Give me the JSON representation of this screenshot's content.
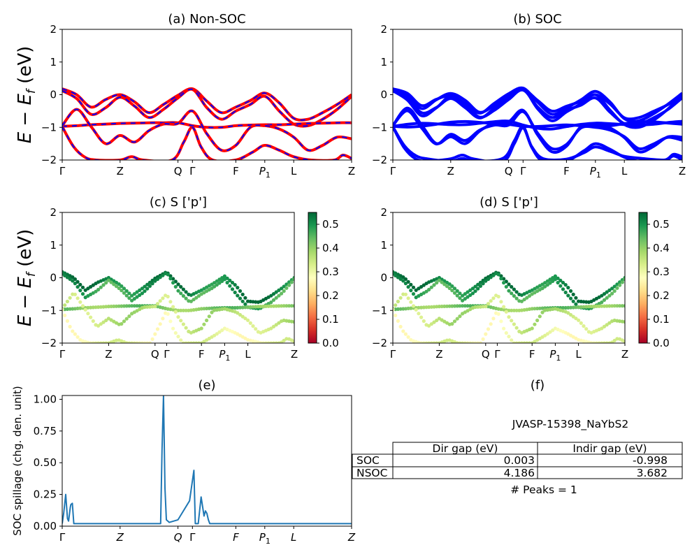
{
  "chart_data": [
    {
      "id": "a",
      "type": "line",
      "title": "(a) Non-SOC",
      "ylabel": "E - E_f (eV)",
      "ylim": [
        -2,
        2
      ],
      "yticks": [
        "2",
        "1",
        "0",
        "−1",
        "−2"
      ],
      "kpath_labels": [
        "Γ",
        "Z",
        "Q",
        "Γ",
        "F",
        "P₁",
        "L",
        "Z"
      ],
      "kpath_positions": [
        0.0,
        0.2,
        0.4,
        0.45,
        0.6,
        0.7,
        0.8,
        1.0
      ],
      "series": [
        {
          "color": "#ff0000",
          "style": "solid",
          "values": [
            [
              [
                0,
                0.18
              ],
              [
                0.05,
                0.0
              ],
              [
                0.1,
                -0.38
              ],
              [
                0.15,
                -0.15
              ],
              [
                0.2,
                0.0
              ],
              [
                0.25,
                -0.22
              ],
              [
                0.3,
                -0.55
              ],
              [
                0.35,
                -0.3
              ],
              [
                0.4,
                -0.02
              ],
              [
                0.45,
                0.18
              ],
              [
                0.5,
                -0.2
              ],
              [
                0.55,
                -0.55
              ],
              [
                0.6,
                -0.38
              ],
              [
                0.65,
                -0.18
              ],
              [
                0.7,
                0.05
              ],
              [
                0.75,
                -0.25
              ],
              [
                0.8,
                -0.72
              ],
              [
                0.85,
                -0.75
              ],
              [
                0.9,
                -0.55
              ],
              [
                0.95,
                -0.3
              ],
              [
                1.0,
                0.0
              ]
            ],
            [
              [
                0,
                0.12
              ],
              [
                0.05,
                -0.12
              ],
              [
                0.1,
                -0.6
              ],
              [
                0.15,
                -0.4
              ],
              [
                0.2,
                -0.08
              ],
              [
                0.25,
                -0.35
              ],
              [
                0.3,
                -0.7
              ],
              [
                0.35,
                -0.45
              ],
              [
                0.4,
                -0.1
              ],
              [
                0.45,
                0.16
              ],
              [
                0.5,
                -0.4
              ],
              [
                0.55,
                -0.75
              ],
              [
                0.6,
                -0.5
              ],
              [
                0.65,
                -0.3
              ],
              [
                0.7,
                -0.05
              ],
              [
                0.75,
                -0.5
              ],
              [
                0.8,
                -0.9
              ],
              [
                0.85,
                -0.95
              ],
              [
                0.9,
                -0.75
              ],
              [
                0.95,
                -0.45
              ],
              [
                1.0,
                -0.05
              ]
            ],
            [
              [
                0,
                -0.97
              ],
              [
                0.05,
                -0.95
              ],
              [
                0.1,
                -0.92
              ],
              [
                0.15,
                -0.9
              ],
              [
                0.2,
                -0.88
              ],
              [
                0.25,
                -0.87
              ],
              [
                0.3,
                -0.86
              ],
              [
                0.35,
                -0.86
              ],
              [
                0.4,
                -0.86
              ],
              [
                0.45,
                -0.95
              ],
              [
                0.5,
                -1.0
              ],
              [
                0.55,
                -1.0
              ],
              [
                0.6,
                -0.95
              ],
              [
                0.65,
                -0.93
              ],
              [
                0.7,
                -0.92
              ],
              [
                0.75,
                -0.92
              ],
              [
                0.8,
                -0.9
              ],
              [
                0.85,
                -0.88
              ],
              [
                0.9,
                -0.87
              ],
              [
                0.95,
                -0.86
              ],
              [
                1.0,
                -0.86
              ]
            ],
            [
              [
                0,
                -0.95
              ],
              [
                0.05,
                -0.45
              ],
              [
                0.1,
                -0.98
              ],
              [
                0.15,
                -1.5
              ],
              [
                0.2,
                -1.25
              ],
              [
                0.25,
                -1.45
              ],
              [
                0.3,
                -1.1
              ],
              [
                0.35,
                -0.9
              ],
              [
                0.4,
                -0.88
              ],
              [
                0.45,
                -0.5
              ],
              [
                0.5,
                -1.2
              ],
              [
                0.55,
                -1.7
              ],
              [
                0.6,
                -1.55
              ],
              [
                0.65,
                -1.0
              ],
              [
                0.7,
                -0.95
              ],
              [
                0.75,
                -1.05
              ],
              [
                0.8,
                -1.3
              ],
              [
                0.85,
                -1.7
              ],
              [
                0.9,
                -1.55
              ],
              [
                0.95,
                -1.3
              ],
              [
                1.0,
                -1.35
              ]
            ],
            [
              [
                0,
                -0.98
              ],
              [
                0.04,
                -1.6
              ],
              [
                0.08,
                -1.92
              ],
              [
                0.12,
                -2.0
              ],
              [
                0.2,
                -2.0
              ],
              [
                0.24,
                -1.9
              ],
              [
                0.28,
                -2.0
              ],
              [
                0.38,
                -2.0
              ],
              [
                0.42,
                -1.45
              ],
              [
                0.45,
                -1.0
              ],
              [
                0.48,
                -1.6
              ],
              [
                0.52,
                -2.0
              ],
              [
                0.6,
                -2.0
              ],
              [
                0.66,
                -1.75
              ],
              [
                0.7,
                -1.55
              ],
              [
                0.75,
                -1.7
              ],
              [
                0.8,
                -1.9
              ],
              [
                0.86,
                -2.0
              ],
              [
                0.94,
                -2.0
              ],
              [
                0.97,
                -1.85
              ],
              [
                1.0,
                -1.95
              ]
            ]
          ]
        },
        {
          "color": "#0000ff",
          "style": "dashed",
          "values": "same"
        }
      ]
    },
    {
      "id": "b",
      "type": "line",
      "title": "(b) SOC",
      "ylim": [
        -2,
        2
      ],
      "yticks": [
        "2",
        "1",
        "0",
        "−1",
        "−2"
      ],
      "kpath_labels": [
        "Γ",
        "Z",
        "Q",
        "Γ",
        "F",
        "P₁",
        "L",
        "Z"
      ],
      "kpath_positions": [
        0.0,
        0.2,
        0.4,
        0.45,
        0.6,
        0.7,
        0.8,
        1.0
      ],
      "series": [
        {
          "color": "#0000ff",
          "style": "solid",
          "values": "same-as-a"
        }
      ]
    },
    {
      "id": "c",
      "type": "scatter",
      "title": "(c)  S ['p']",
      "ylabel": "E - E_f (eV)",
      "ylim": [
        -2,
        2
      ],
      "yticks": [
        "2",
        "1",
        "0",
        "−1",
        "−2"
      ],
      "kpath_labels": [
        "Γ",
        "Z",
        "Q",
        "Γ",
        "F",
        "P₁",
        "L",
        "Z"
      ],
      "colorbar": {
        "range": [
          0.0,
          0.55
        ],
        "ticks": [
          "0.0",
          "0.1",
          "0.2",
          "0.3",
          "0.4",
          "0.5"
        ],
        "colormap": "RdYlGn"
      },
      "band_weights": [
        0.52,
        0.48,
        0.42,
        0.36,
        0.3
      ]
    },
    {
      "id": "d",
      "type": "scatter",
      "title": "(d) S ['p']",
      "ylim": [
        -2,
        2
      ],
      "yticks": [
        "2",
        "1",
        "0",
        "−1",
        "−2"
      ],
      "kpath_labels": [
        "Γ",
        "Z",
        "Q",
        "Γ",
        "F",
        "P₁",
        "L",
        "Z"
      ],
      "colorbar": {
        "range": [
          0.0,
          0.55
        ],
        "ticks": [
          "0.0",
          "0.1",
          "0.2",
          "0.3",
          "0.4",
          "0.5"
        ],
        "colormap": "RdYlGn"
      },
      "band_weights": [
        0.52,
        0.48,
        0.42,
        0.36,
        0.3
      ]
    },
    {
      "id": "e",
      "type": "line",
      "title": "(e)",
      "ylabel": "SOC spillage (chg. den. unit)",
      "ylim": [
        0,
        1.03
      ],
      "yticks": [
        "1.00",
        "0.75",
        "0.50",
        "0.25",
        "0.00"
      ],
      "kpath_labels": [
        "Γ",
        "Z",
        "Q",
        "Γ",
        "F",
        "P₁",
        "L",
        "Z"
      ],
      "color": "#1f77b4",
      "x": [
        0,
        0.005,
        0.012,
        0.018,
        0.022,
        0.028,
        0.03,
        0.035,
        0.04,
        0.045,
        0.05,
        0.06,
        0.1,
        0.2,
        0.3,
        0.34,
        0.345,
        0.35,
        0.355,
        0.36,
        0.37,
        0.4,
        0.44,
        0.455,
        0.46,
        0.47,
        0.48,
        0.49,
        0.495,
        0.5,
        0.505,
        0.51,
        0.52,
        0.6,
        0.8,
        1.0
      ],
      "values": [
        0.02,
        0.1,
        0.25,
        0.06,
        0.04,
        0.15,
        0.17,
        0.18,
        0.02,
        0.02,
        0.02,
        0.02,
        0.02,
        0.02,
        0.02,
        0.02,
        0.6,
        1.03,
        0.3,
        0.05,
        0.03,
        0.05,
        0.2,
        0.44,
        0.02,
        0.02,
        0.23,
        0.08,
        0.12,
        0.1,
        0.05,
        0.02,
        0.02,
        0.02,
        0.02,
        0.02
      ]
    }
  ],
  "panel_f": {
    "title": "(f)",
    "name": "JVASP-15398_NaYbS2",
    "columns": [
      "Dir gap (eV)",
      "Indir gap (eV)"
    ],
    "rows": [
      {
        "label": "SOC",
        "dir": "0.003",
        "indir": "-0.998"
      },
      {
        "label": "NSOC",
        "dir": "4.186",
        "indir": "3.682"
      }
    ],
    "peaks": "# Peaks = 1"
  }
}
